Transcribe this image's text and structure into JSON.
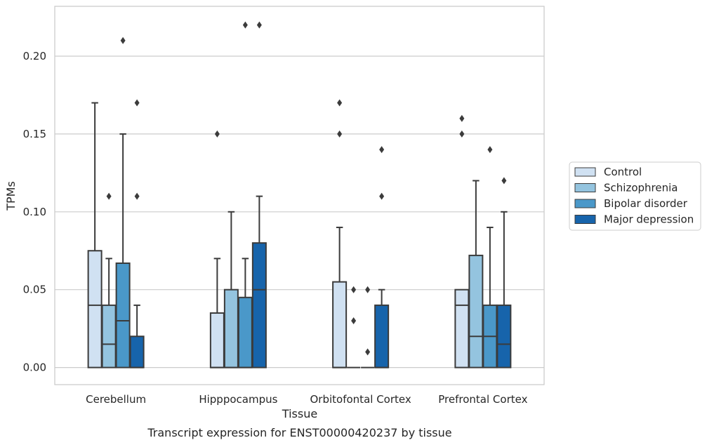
{
  "chart_data": {
    "type": "box",
    "title": "",
    "caption": "Transcript expression for ENST00000420237 by tissue",
    "xlabel": "Tissue",
    "ylabel": "TPMs",
    "ylim": [
      -0.011,
      0.232
    ],
    "yticks": [
      "0.00",
      "0.05",
      "0.10",
      "0.15",
      "0.20"
    ],
    "yticks_values": [
      0.0,
      0.05,
      0.1,
      0.15,
      0.2
    ],
    "grid": "horizontal",
    "legend_position": "right",
    "categories": [
      "Cerebellum",
      "Hipppocampus",
      "Orbitofontal Cortex",
      "Prefrontal Cortex"
    ],
    "series": [
      {
        "name": "Control",
        "color": "#d0e1f2",
        "boxes": [
          {
            "q1": 0.0,
            "median": 0.04,
            "q3": 0.075,
            "whisker_low": 0.0,
            "whisker_high": 0.17,
            "outliers": []
          },
          {
            "q1": 0.0,
            "median": 0.0,
            "q3": 0.035,
            "whisker_low": 0.0,
            "whisker_high": 0.07,
            "outliers": [
              0.15
            ]
          },
          {
            "q1": 0.0,
            "median": 0.0,
            "q3": 0.055,
            "whisker_low": 0.0,
            "whisker_high": 0.09,
            "outliers": [
              0.15,
              0.17
            ]
          },
          {
            "q1": 0.0,
            "median": 0.04,
            "q3": 0.05,
            "whisker_low": 0.0,
            "whisker_high": 0.05,
            "outliers": [
              0.15,
              0.16
            ]
          }
        ]
      },
      {
        "name": "Schizophrenia",
        "color": "#94c4df",
        "boxes": [
          {
            "q1": 0.0,
            "median": 0.015,
            "q3": 0.04,
            "whisker_low": 0.0,
            "whisker_high": 0.07,
            "outliers": [
              0.11
            ]
          },
          {
            "q1": 0.0,
            "median": 0.0,
            "q3": 0.05,
            "whisker_low": 0.0,
            "whisker_high": 0.1,
            "outliers": []
          },
          {
            "q1": 0.0,
            "median": 0.0,
            "q3": 0.0,
            "whisker_low": 0.0,
            "whisker_high": 0.0,
            "outliers": [
              0.03,
              0.05
            ]
          },
          {
            "q1": 0.0,
            "median": 0.02,
            "q3": 0.072,
            "whisker_low": 0.0,
            "whisker_high": 0.12,
            "outliers": []
          }
        ]
      },
      {
        "name": "Bipolar disorder",
        "color": "#4a98c9",
        "boxes": [
          {
            "q1": 0.0,
            "median": 0.03,
            "q3": 0.067,
            "whisker_low": 0.0,
            "whisker_high": 0.15,
            "outliers": [
              0.21
            ]
          },
          {
            "q1": 0.0,
            "median": 0.0,
            "q3": 0.045,
            "whisker_low": 0.0,
            "whisker_high": 0.07,
            "outliers": [
              0.22
            ]
          },
          {
            "q1": 0.0,
            "median": 0.0,
            "q3": 0.0,
            "whisker_low": 0.0,
            "whisker_high": 0.0,
            "outliers": [
              0.01,
              0.05
            ]
          },
          {
            "q1": 0.0,
            "median": 0.02,
            "q3": 0.04,
            "whisker_low": 0.0,
            "whisker_high": 0.09,
            "outliers": [
              0.14
            ]
          }
        ]
      },
      {
        "name": "Major depression",
        "color": "#1764ab",
        "boxes": [
          {
            "q1": 0.0,
            "median": 0.0,
            "q3": 0.02,
            "whisker_low": 0.0,
            "whisker_high": 0.04,
            "outliers": [
              0.11,
              0.17
            ]
          },
          {
            "q1": 0.0,
            "median": 0.05,
            "q3": 0.08,
            "whisker_low": 0.0,
            "whisker_high": 0.11,
            "outliers": [
              0.22
            ]
          },
          {
            "q1": 0.0,
            "median": 0.0,
            "q3": 0.04,
            "whisker_low": 0.0,
            "whisker_high": 0.05,
            "outliers": [
              0.11,
              0.14
            ]
          },
          {
            "q1": 0.0,
            "median": 0.015,
            "q3": 0.04,
            "whisker_low": 0.0,
            "whisker_high": 0.1,
            "outliers": [
              0.12
            ]
          }
        ]
      }
    ]
  },
  "colors": {
    "edge": "#3b3b3b",
    "grid": "#cccccc",
    "frame": "#cccccc"
  }
}
